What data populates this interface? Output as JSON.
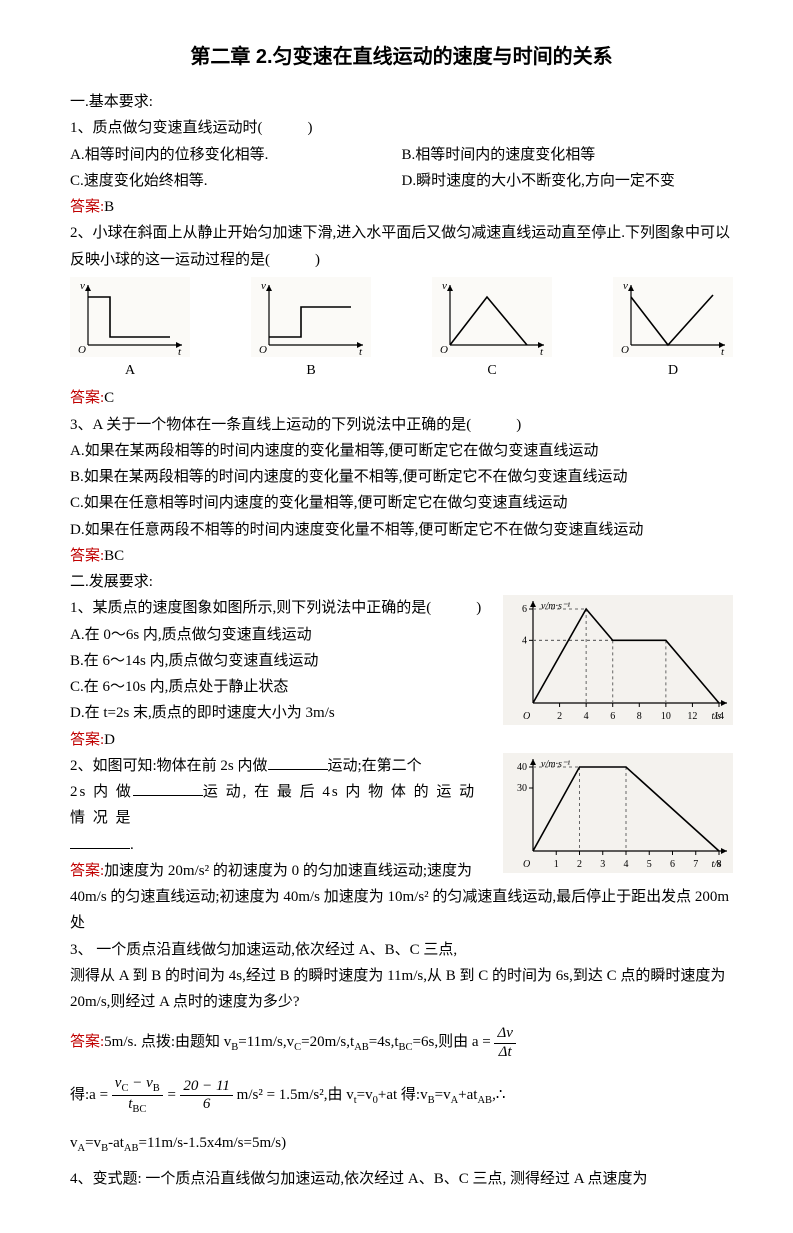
{
  "title": "第二章 2.匀变速在直线运动的速度与时间的关系",
  "sec1_heading": "一.基本要求:",
  "q1": {
    "stem": "1、质点做匀变速直线运动时(　　　)",
    "A": "A.相等时间内的位移变化相等.",
    "B": "B.相等时间内的速度变化相等",
    "C": "C.速度变化始终相等.",
    "D": "D.瞬时速度的大小不断变化,方向一定不变",
    "ans_label": "答案:",
    "ans": "B"
  },
  "q2": {
    "stem": "2、小球在斜面上从静止开始匀加速下滑,进入水平面后又做匀减速直线运动直至停止.下列图象中可以反映小球的这一运动过程的是(　　　)",
    "labels": {
      "A": "A",
      "B": "B",
      "C": "C",
      "D": "D"
    },
    "axis_v": "v",
    "axis_t": "t",
    "axis_O": "O",
    "ans_label": "答案:",
    "ans": "C"
  },
  "q3": {
    "stem": "3、A 关于一个物体在一条直线上运动的下列说法中正确的是(　　　)",
    "A": "A.如果在某两段相等的时间内速度的变化量相等,便可断定它在做匀变速直线运动",
    "B": "B.如果在某两段相等的时间内速度的变化量不相等,便可断定它不在做匀变速直线运动",
    "C": "C.如果在任意相等时间内速度的变化量相等,便可断定它在做匀变速直线运动",
    "D": "D.如果在任意两段不相等的时间内速度变化量不相等,便可断定它不在做匀变速直线运动",
    "ans_label": "答案:",
    "ans": "BC"
  },
  "sec2_heading": "二.发展要求:",
  "q4": {
    "stem": "1、某质点的速度图象如图所示,则下列说法中正确的是(　　　)",
    "A": "A.在 0～6s 内,质点做匀变速直线运动",
    "B": "B.在 6～14s 内,质点做匀变速直线运动",
    "C": "C.在 6～10s 内,质点处于静止状态",
    "D": "D.在 t=2s 末,质点的即时速度大小为 3m/s",
    "ans_label": "答案:",
    "ans": "D",
    "chart": {
      "type": "line",
      "x_label": "t/s",
      "y_label": "v/m·s⁻¹",
      "origin": "O",
      "xticks": [
        2,
        4,
        6,
        8,
        10,
        12,
        14
      ],
      "yticks": [
        4,
        6
      ],
      "points": [
        [
          0,
          0
        ],
        [
          4,
          6
        ],
        [
          6,
          4
        ],
        [
          10,
          4
        ],
        [
          14,
          0
        ]
      ],
      "plot_color": "#000000",
      "grid_color": "#666666",
      "bg_color": "#f4f2ee"
    }
  },
  "q5": {
    "stem_a": "2、如图可知:物体在前 2s 内做",
    "stem_b": "运动;在第二个",
    "stem_c": "2s 内 做",
    "stem_d": "运 动, 在 最 后 4s 内 物 体 的 运 动 情 况 是",
    "ans_label": "答案:",
    "ans_text": "加速度为 20m/s² 的初速度为 0 的匀加速直线运动;速度为 40m/s 的匀速直线运动;初速度为 40m/s 加速度为 10m/s² 的匀减速直线运动,最后停止于距出发点 200m 处",
    "blank_end": ".",
    "chart": {
      "type": "line",
      "x_label": "t/s",
      "y_label": "v/m·s⁻¹",
      "origin": "O",
      "xticks": [
        1,
        2,
        3,
        4,
        5,
        6,
        7,
        8
      ],
      "yticks": [
        30,
        40
      ],
      "points": [
        [
          0,
          0
        ],
        [
          2,
          40
        ],
        [
          4,
          40
        ],
        [
          8,
          0
        ]
      ],
      "plot_color": "#000000",
      "grid_color": "#666666",
      "bg_color": "#f4f2ee"
    }
  },
  "q6": {
    "stem": "3、 一个质点沿直线做匀加速运动,依次经过 A、B、C 三点,",
    "stem2": "测得从 A 到 B 的时间为 4s,经过 B 的瞬时速度为 11m/s,从 B 到 C 的时间为 6s,到达 C 点的瞬时速度为 20m/s,则经过 A 点时的速度为多少?",
    "ans_label": "答案:",
    "ans_lead": "5m/s.  点拨:由题知 v",
    "f": {
      "vB": "B",
      "eq11": "=11m/s,v",
      "vC": "C",
      "eq20": "=20m/s,t",
      "tAB": "AB",
      "eq4": "=4s,t",
      "tBC": "BC",
      "eq6": "=6s,则由 a =",
      "dv_num": "Δv",
      "dv_den": "Δt",
      "line2_lead": "得:a =",
      "frac1_num_a": "v",
      "frac1_num_b": " − v",
      "frac1_den": "t",
      "eqs": " = ",
      "frac2_num": "20 − 11",
      "frac2_den": "6",
      "units": " m/s² = 1.5m/s²",
      "tail": ",由 v",
      "t1": "t",
      "eqv0": "=v",
      "zero": "0",
      "plusat": "+at 得:v",
      "eqvA": "=v",
      "plusatAB": "+at",
      "comma_therefore": ",∴",
      "line3": "v",
      "A": "A",
      "eqvb": "=v",
      "B2": "B",
      "minus": "-at",
      "AB2": "AB",
      "calc": "=11m/s-1.5x4m/s=5m/s)"
    }
  },
  "q7": {
    "stem": "4、变式题:  一个质点沿直线做匀加速运动,依次经过 A、B、C 三点,  测得经过 A 点速度为"
  },
  "graph_style": {
    "axis_color": "#000000",
    "axis_width": 1.2,
    "plot_width": 1.6,
    "dash": "3,3"
  }
}
